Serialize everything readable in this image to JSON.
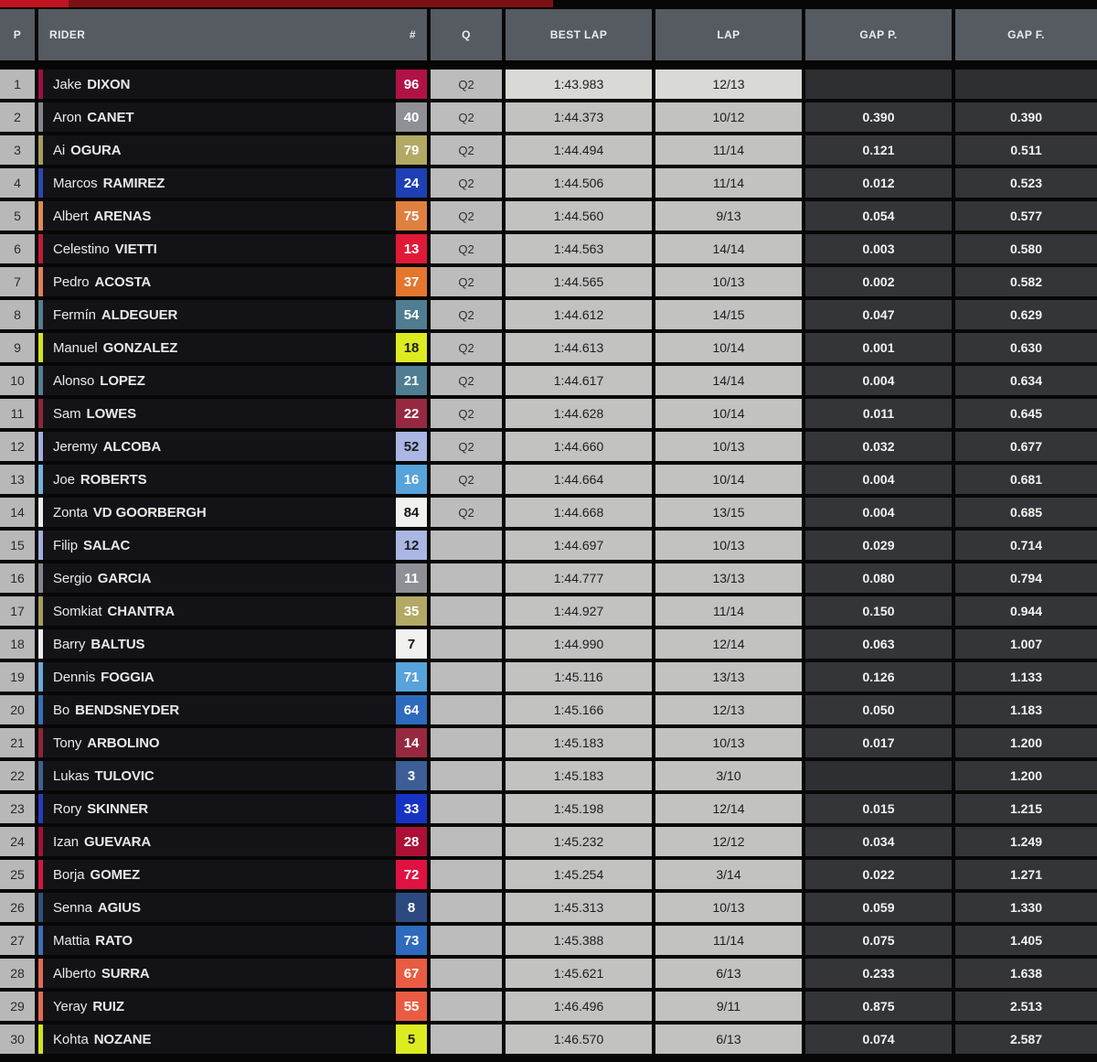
{
  "topbar": {
    "bright_red": "#c11420",
    "dark_red": "#7c1115"
  },
  "table": {
    "headers": {
      "p": "P",
      "rider": "RIDER",
      "num": "#",
      "q": "Q",
      "best_lap": "BEST LAP",
      "lap": "LAP",
      "gap_p": "GAP P.",
      "gap_f": "GAP F."
    },
    "rows": [
      {
        "pos": "1",
        "first": "Jake",
        "last": "DIXON",
        "number": "96",
        "badge_bg": "#b01246",
        "badge_fg": "#ffffff",
        "stripe": "#9d1140",
        "q": "Q2",
        "best_lap": "1:43.983",
        "lap": "12/13",
        "gap_p": "",
        "gap_f": "",
        "highlight": true
      },
      {
        "pos": "2",
        "first": "Aron",
        "last": "CANET",
        "number": "40",
        "badge_bg": "#8f9095",
        "badge_fg": "#ffffff",
        "stripe": "#86878d",
        "q": "Q2",
        "best_lap": "1:44.373",
        "lap": "10/12",
        "gap_p": "0.390",
        "gap_f": "0.390"
      },
      {
        "pos": "3",
        "first": "Ai",
        "last": "OGURA",
        "number": "79",
        "badge_bg": "#b2a964",
        "badge_fg": "#ffffff",
        "stripe": "#a89f5e",
        "q": "Q2",
        "best_lap": "1:44.494",
        "lap": "11/14",
        "gap_p": "0.121",
        "gap_f": "0.511"
      },
      {
        "pos": "4",
        "first": "Marcos",
        "last": "RAMIREZ",
        "number": "24",
        "badge_bg": "#1e40b4",
        "badge_fg": "#ffffff",
        "stripe": "#2c49ae",
        "q": "Q2",
        "best_lap": "1:44.506",
        "lap": "11/14",
        "gap_p": "0.012",
        "gap_f": "0.523"
      },
      {
        "pos": "5",
        "first": "Albert",
        "last": "ARENAS",
        "number": "75",
        "badge_bg": "#de8040",
        "badge_fg": "#ffffff",
        "stripe": "#e08a58",
        "q": "Q2",
        "best_lap": "1:44.560",
        "lap": "9/13",
        "gap_p": "0.054",
        "gap_f": "0.577"
      },
      {
        "pos": "6",
        "first": "Celestino",
        "last": "VIETTI",
        "number": "13",
        "badge_bg": "#e01937",
        "badge_fg": "#ffffff",
        "stripe": "#c01d36",
        "q": "Q2",
        "best_lap": "1:44.563",
        "lap": "14/14",
        "gap_p": "0.003",
        "gap_f": "0.580"
      },
      {
        "pos": "7",
        "first": "Pedro",
        "last": "ACOSTA",
        "number": "37",
        "badge_bg": "#e4762d",
        "badge_fg": "#ffffff",
        "stripe": "#df8355",
        "q": "Q2",
        "best_lap": "1:44.565",
        "lap": "10/13",
        "gap_p": "0.002",
        "gap_f": "0.582"
      },
      {
        "pos": "8",
        "first": "Fermín",
        "last": "ALDEGUER",
        "number": "54",
        "badge_bg": "#4f7d92",
        "badge_fg": "#ffffff",
        "stripe": "#577f8f",
        "q": "Q2",
        "best_lap": "1:44.612",
        "lap": "14/15",
        "gap_p": "0.047",
        "gap_f": "0.629"
      },
      {
        "pos": "9",
        "first": "Manuel",
        "last": "GONZALEZ",
        "number": "18",
        "badge_bg": "#dcec20",
        "badge_fg": "#1e1e22",
        "stripe": "#d2e41c",
        "q": "Q2",
        "best_lap": "1:44.613",
        "lap": "10/14",
        "gap_p": "0.001",
        "gap_f": "0.630"
      },
      {
        "pos": "10",
        "first": "Alonso",
        "last": "LOPEZ",
        "number": "21",
        "badge_bg": "#4f7d92",
        "badge_fg": "#ffffff",
        "stripe": "#577f8f",
        "q": "Q2",
        "best_lap": "1:44.617",
        "lap": "14/14",
        "gap_p": "0.004",
        "gap_f": "0.634"
      },
      {
        "pos": "11",
        "first": "Sam",
        "last": "LOWES",
        "number": "22",
        "badge_bg": "#962940",
        "badge_fg": "#ffffff",
        "stripe": "#8d2739",
        "q": "Q2",
        "best_lap": "1:44.628",
        "lap": "10/14",
        "gap_p": "0.011",
        "gap_f": "0.645"
      },
      {
        "pos": "12",
        "first": "Jeremy",
        "last": "ALCOBA",
        "number": "52",
        "badge_bg": "#aab6e3",
        "badge_fg": "#1e1e22",
        "stripe": "#a2afdd",
        "q": "Q2",
        "best_lap": "1:44.660",
        "lap": "10/13",
        "gap_p": "0.032",
        "gap_f": "0.677"
      },
      {
        "pos": "13",
        "first": "Joe",
        "last": "ROBERTS",
        "number": "16",
        "badge_bg": "#57a3db",
        "badge_fg": "#ffffff",
        "stripe": "#79b0dd",
        "q": "Q2",
        "best_lap": "1:44.664",
        "lap": "10/14",
        "gap_p": "0.004",
        "gap_f": "0.681"
      },
      {
        "pos": "14",
        "first": "Zonta",
        "last": "VD GOORBERGH",
        "number": "84",
        "badge_bg": "#f1f1ef",
        "badge_fg": "#16161a",
        "stripe": "#ededeb",
        "q": "Q2",
        "best_lap": "1:44.668",
        "lap": "13/15",
        "gap_p": "0.004",
        "gap_f": "0.685"
      },
      {
        "pos": "15",
        "first": "Filip",
        "last": "SALAC",
        "number": "12",
        "badge_bg": "#aab6e3",
        "badge_fg": "#1e1e22",
        "stripe": "#a2afdd",
        "q": "",
        "best_lap": "1:44.697",
        "lap": "10/13",
        "gap_p": "0.029",
        "gap_f": "0.714"
      },
      {
        "pos": "16",
        "first": "Sergio",
        "last": "GARCIA",
        "number": "11",
        "badge_bg": "#8f9095",
        "badge_fg": "#ffffff",
        "stripe": "#86878d",
        "q": "",
        "best_lap": "1:44.777",
        "lap": "13/13",
        "gap_p": "0.080",
        "gap_f": "0.794"
      },
      {
        "pos": "17",
        "first": "Somkiat",
        "last": "CHANTRA",
        "number": "35",
        "badge_bg": "#b2a964",
        "badge_fg": "#ffffff",
        "stripe": "#a89f5e",
        "q": "",
        "best_lap": "1:44.927",
        "lap": "11/14",
        "gap_p": "0.150",
        "gap_f": "0.944"
      },
      {
        "pos": "18",
        "first": "Barry",
        "last": "BALTUS",
        "number": "7",
        "badge_bg": "#f1f1ef",
        "badge_fg": "#16161a",
        "stripe": "#ededeb",
        "q": "",
        "best_lap": "1:44.990",
        "lap": "12/14",
        "gap_p": "0.063",
        "gap_f": "1.007"
      },
      {
        "pos": "19",
        "first": "Dennis",
        "last": "FOGGIA",
        "number": "71",
        "badge_bg": "#57a3db",
        "badge_fg": "#ffffff",
        "stripe": "#6caadb",
        "q": "",
        "best_lap": "1:45.116",
        "lap": "13/13",
        "gap_p": "0.126",
        "gap_f": "1.133"
      },
      {
        "pos": "20",
        "first": "Bo",
        "last": "BENDSNEYDER",
        "number": "64",
        "badge_bg": "#2e6abd",
        "badge_fg": "#ffffff",
        "stripe": "#3a6fb6",
        "q": "",
        "best_lap": "1:45.166",
        "lap": "12/13",
        "gap_p": "0.050",
        "gap_f": "1.183"
      },
      {
        "pos": "21",
        "first": "Tony",
        "last": "ARBOLINO",
        "number": "14",
        "badge_bg": "#962940",
        "badge_fg": "#ffffff",
        "stripe": "#8d2739",
        "q": "",
        "best_lap": "1:45.183",
        "lap": "10/13",
        "gap_p": "0.017",
        "gap_f": "1.200"
      },
      {
        "pos": "22",
        "first": "Lukas",
        "last": "TULOVIC",
        "number": "3",
        "badge_bg": "#3c5d95",
        "badge_fg": "#ffffff",
        "stripe": "#42608f",
        "q": "",
        "best_lap": "1:45.183",
        "lap": "3/10",
        "gap_p": "",
        "gap_f": "1.200"
      },
      {
        "pos": "23",
        "first": "Rory",
        "last": "SKINNER",
        "number": "33",
        "badge_bg": "#1733c4",
        "badge_fg": "#ffffff",
        "stripe": "#2a3bbd",
        "q": "",
        "best_lap": "1:45.198",
        "lap": "12/14",
        "gap_p": "0.015",
        "gap_f": "1.215"
      },
      {
        "pos": "24",
        "first": "Izan",
        "last": "GUEVARA",
        "number": "28",
        "badge_bg": "#ac1034",
        "badge_fg": "#ffffff",
        "stripe": "#a31335",
        "q": "",
        "best_lap": "1:45.232",
        "lap": "12/12",
        "gap_p": "0.034",
        "gap_f": "1.249"
      },
      {
        "pos": "25",
        "first": "Borja",
        "last": "GOMEZ",
        "number": "72",
        "badge_bg": "#df1243",
        "badge_fg": "#ffffff",
        "stripe": "#d41740",
        "q": "",
        "best_lap": "1:45.254",
        "lap": "3/14",
        "gap_p": "0.022",
        "gap_f": "1.271"
      },
      {
        "pos": "26",
        "first": "Senna",
        "last": "AGIUS",
        "number": "8",
        "badge_bg": "#2c4a80",
        "badge_fg": "#ffffff",
        "stripe": "#33507e",
        "q": "",
        "best_lap": "1:45.313",
        "lap": "10/13",
        "gap_p": "0.059",
        "gap_f": "1.330"
      },
      {
        "pos": "27",
        "first": "Mattia",
        "last": "RATO",
        "number": "73",
        "badge_bg": "#2e6abd",
        "badge_fg": "#ffffff",
        "stripe": "#3f6fb3",
        "q": "",
        "best_lap": "1:45.388",
        "lap": "11/14",
        "gap_p": "0.075",
        "gap_f": "1.405"
      },
      {
        "pos": "28",
        "first": "Alberto",
        "last": "SURRA",
        "number": "67",
        "badge_bg": "#e95c43",
        "badge_fg": "#ffffff",
        "stripe": "#e56a54",
        "q": "",
        "best_lap": "1:45.621",
        "lap": "6/13",
        "gap_p": "0.233",
        "gap_f": "1.638"
      },
      {
        "pos": "29",
        "first": "Yeray",
        "last": "RUIZ",
        "number": "55",
        "badge_bg": "#e95c43",
        "badge_fg": "#ffffff",
        "stripe": "#e56a54",
        "q": "",
        "best_lap": "1:46.496",
        "lap": "9/11",
        "gap_p": "0.875",
        "gap_f": "2.513"
      },
      {
        "pos": "30",
        "first": "Kohta",
        "last": "NOZANE",
        "number": "5",
        "badge_bg": "#dcec20",
        "badge_fg": "#1e1e22",
        "stripe": "#d2e41c",
        "q": "",
        "best_lap": "1:46.570",
        "lap": "6/13",
        "gap_p": "0.074",
        "gap_f": "2.587"
      }
    ]
  }
}
